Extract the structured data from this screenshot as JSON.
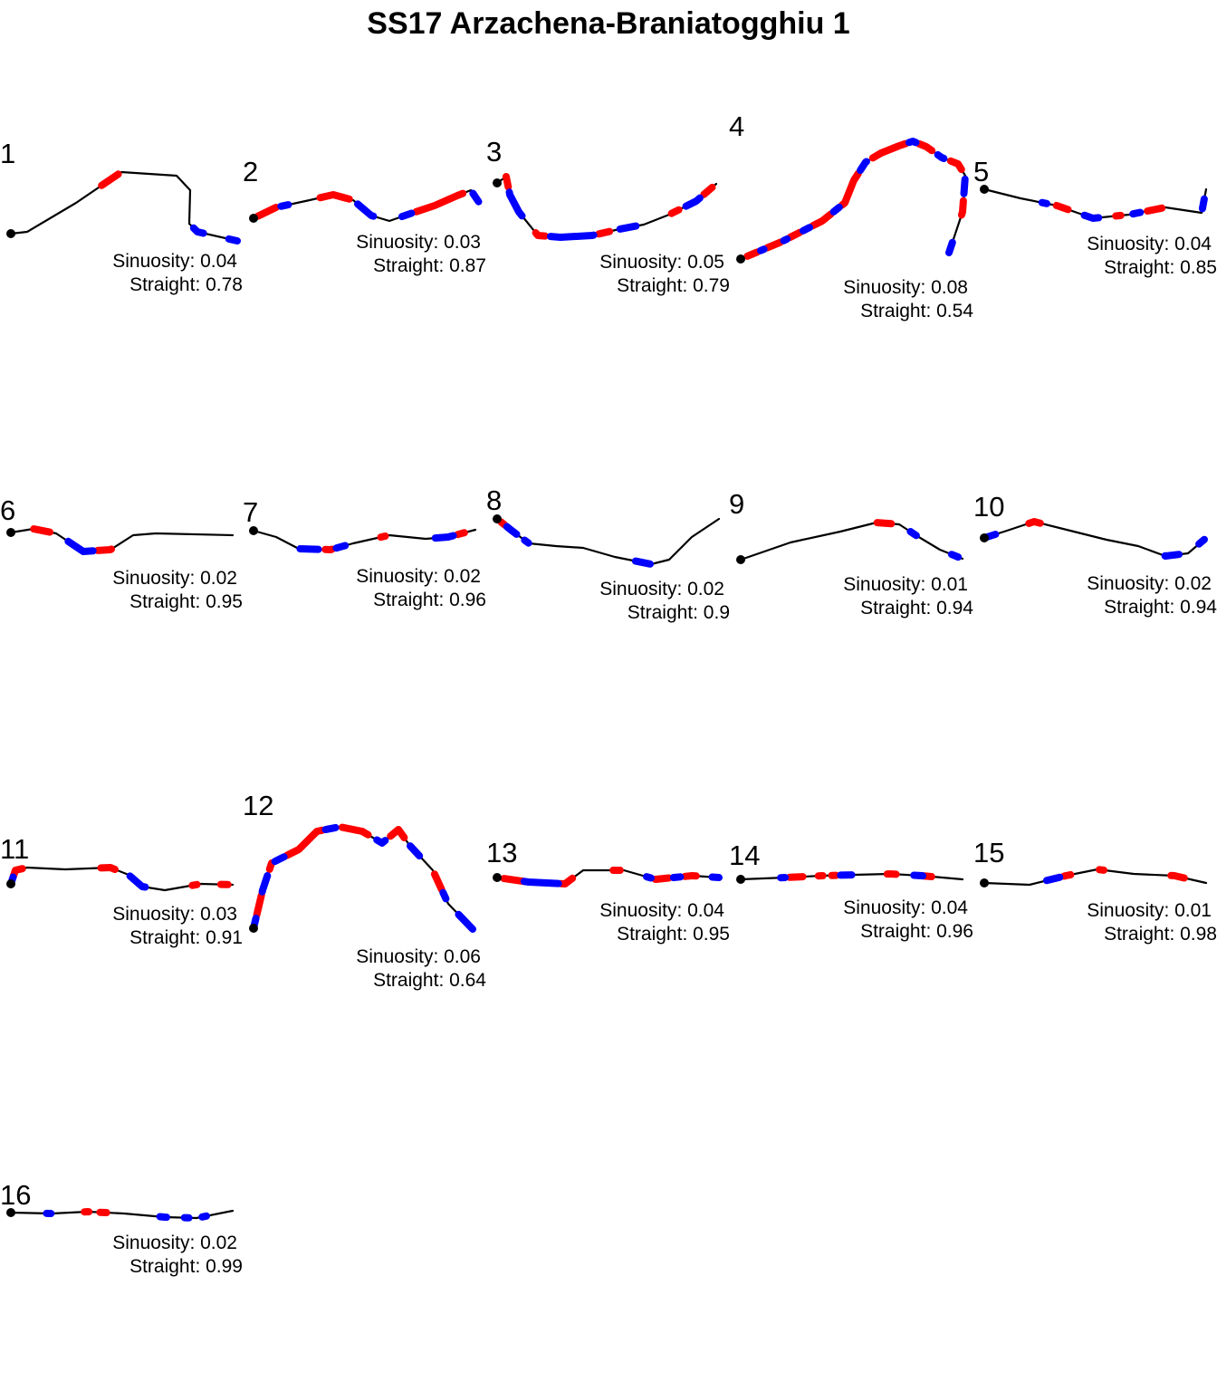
{
  "title": "SS17 Arzachena-Braniatogghiu 1",
  "chart_data": {
    "type": "line",
    "title": "SS17 Arzachena-Braniatogghiu 1",
    "legend": "none",
    "grid": false,
    "colors": {
      "track": "#000000",
      "start": "#000000",
      "red_marker": "#ff0000",
      "blue_marker": "#0000ff"
    },
    "panels": [
      {
        "id": "1",
        "sinuosity": "0.04",
        "straight": "0.78",
        "path": [
          [
            0,
            76
          ],
          [
            18,
            74
          ],
          [
            72,
            42
          ],
          [
            122,
            8
          ],
          [
            183,
            12
          ],
          [
            198,
            28
          ],
          [
            197,
            65
          ],
          [
            206,
            74
          ],
          [
            250,
            84
          ]
        ],
        "red": [
          [
            0.36,
            0.43
          ]
        ],
        "blue": [
          [
            0.84,
            0.88
          ],
          [
            0.97,
            1.0
          ]
        ]
      },
      {
        "id": "2",
        "sinuosity": "0.03",
        "straight": "0.87",
        "path": [
          [
            0,
            58
          ],
          [
            25,
            46
          ],
          [
            62,
            38
          ],
          [
            88,
            32
          ],
          [
            110,
            38
          ],
          [
            130,
            55
          ],
          [
            150,
            61
          ],
          [
            170,
            54
          ],
          [
            200,
            44
          ],
          [
            225,
            33
          ],
          [
            240,
            27
          ],
          [
            250,
            42
          ]
        ],
        "red": [
          [
            0.02,
            0.1
          ],
          [
            0.28,
            0.4
          ],
          [
            0.7,
            0.9
          ]
        ],
        "blue": [
          [
            0.12,
            0.15
          ],
          [
            0.44,
            0.52
          ],
          [
            0.64,
            0.68
          ],
          [
            0.95,
            0.99
          ]
        ]
      },
      {
        "id": "3",
        "sinuosity": "0.05",
        "straight": "0.79",
        "path": [
          [
            0,
            35
          ],
          [
            10,
            28
          ],
          [
            14,
            48
          ],
          [
            24,
            67
          ],
          [
            45,
            93
          ],
          [
            70,
            95
          ],
          [
            105,
            93
          ],
          [
            135,
            86
          ],
          [
            162,
            81
          ],
          [
            190,
            70
          ],
          [
            220,
            55
          ],
          [
            242,
            36
          ]
        ],
        "red": [
          [
            0.04,
            0.08
          ],
          [
            0.28,
            0.32
          ],
          [
            0.52,
            0.56
          ],
          [
            0.8,
            0.83
          ],
          [
            0.94,
            0.98
          ]
        ],
        "blue": [
          [
            0.1,
            0.2
          ],
          [
            0.34,
            0.5
          ],
          [
            0.6,
            0.66
          ],
          [
            0.86,
            0.92
          ]
        ]
      },
      {
        "id": "4",
        "sinuosity": "0.08",
        "straight": "0.54",
        "path": [
          [
            0,
            152
          ],
          [
            45,
            133
          ],
          [
            90,
            110
          ],
          [
            115,
            90
          ],
          [
            125,
            65
          ],
          [
            138,
            45
          ],
          [
            155,
            35
          ],
          [
            175,
            27
          ],
          [
            190,
            22
          ],
          [
            205,
            28
          ],
          [
            222,
            40
          ],
          [
            240,
            47
          ],
          [
            248,
            60
          ],
          [
            245,
            100
          ],
          [
            230,
            145
          ]
        ],
        "red": [
          [
            0.02,
            0.05
          ],
          [
            0.08,
            0.12
          ],
          [
            0.15,
            0.18
          ],
          [
            0.22,
            0.28
          ],
          [
            0.32,
            0.42
          ],
          [
            0.48,
            0.58
          ],
          [
            0.62,
            0.66
          ],
          [
            0.72,
            0.76
          ],
          [
            0.85,
            0.89
          ]
        ],
        "blue": [
          [
            0.06,
            0.07
          ],
          [
            0.13,
            0.14
          ],
          [
            0.19,
            0.21
          ],
          [
            0.29,
            0.31
          ],
          [
            0.43,
            0.46
          ],
          [
            0.59,
            0.61
          ],
          [
            0.68,
            0.7
          ],
          [
            0.79,
            0.83
          ],
          [
            0.97,
            1.0
          ]
        ]
      },
      {
        "id": "5",
        "sinuosity": "0.04",
        "straight": "0.85",
        "path": [
          [
            0,
            0
          ],
          [
            40,
            10
          ],
          [
            80,
            18
          ],
          [
            120,
            32
          ],
          [
            160,
            28
          ],
          [
            200,
            20
          ],
          [
            240,
            26
          ],
          [
            245,
            0
          ]
        ],
        "red": [
          [
            0.3,
            0.35
          ],
          [
            0.55,
            0.57
          ],
          [
            0.68,
            0.74
          ]
        ],
        "blue": [
          [
            0.24,
            0.26
          ],
          [
            0.42,
            0.48
          ],
          [
            0.62,
            0.65
          ],
          [
            0.92,
            0.96
          ]
        ]
      },
      {
        "id": "6",
        "sinuosity": "0.02",
        "straight": "0.95",
        "path": [
          [
            0,
            37
          ],
          [
            25,
            33
          ],
          [
            50,
            38
          ],
          [
            80,
            58
          ],
          [
            110,
            56
          ],
          [
            135,
            40
          ],
          [
            160,
            38
          ],
          [
            245,
            40
          ]
        ],
        "red": [
          [
            0.1,
            0.17
          ],
          [
            0.4,
            0.46
          ]
        ],
        "blue": [
          [
            0.26,
            0.38
          ]
        ]
      },
      {
        "id": "7",
        "sinuosity": "0.02",
        "straight": "0.96",
        "path": [
          [
            0,
            23
          ],
          [
            25,
            30
          ],
          [
            50,
            43
          ],
          [
            85,
            44
          ],
          [
            110,
            37
          ],
          [
            150,
            28
          ],
          [
            190,
            32
          ],
          [
            215,
            30
          ],
          [
            245,
            22
          ]
        ],
        "red": [
          [
            0.33,
            0.36
          ],
          [
            0.58,
            0.6
          ],
          [
            0.92,
            0.95
          ]
        ],
        "blue": [
          [
            0.22,
            0.3
          ],
          [
            0.38,
            0.42
          ],
          [
            0.82,
            0.9
          ]
        ]
      },
      {
        "id": "8",
        "sinuosity": "0.02",
        "straight": "0.9",
        "path": [
          [
            0,
            10
          ],
          [
            15,
            22
          ],
          [
            35,
            37
          ],
          [
            65,
            40
          ],
          [
            95,
            42
          ],
          [
            130,
            52
          ],
          [
            170,
            60
          ],
          [
            190,
            55
          ],
          [
            215,
            30
          ],
          [
            245,
            10
          ]
        ],
        "red": [
          [
            0.02,
            0.04
          ]
        ],
        "blue": [
          [
            0.05,
            0.1
          ],
          [
            0.14,
            0.16
          ],
          [
            0.6,
            0.66
          ]
        ]
      },
      {
        "id": "9",
        "sinuosity": "0.01",
        "straight": "0.94",
        "path": [
          [
            0,
            61
          ],
          [
            55,
            42
          ],
          [
            110,
            30
          ],
          [
            150,
            20
          ],
          [
            175,
            22
          ],
          [
            195,
            35
          ],
          [
            220,
            50
          ],
          [
            245,
            60
          ]
        ],
        "red": [
          [
            0.6,
            0.66
          ]
        ],
        "blue": [
          [
            0.75,
            0.78
          ],
          [
            0.95,
            0.98
          ]
        ]
      },
      {
        "id": "10",
        "sinuosity": "0.02",
        "straight": "0.94",
        "path": [
          [
            0,
            38
          ],
          [
            25,
            30
          ],
          [
            55,
            20
          ],
          [
            95,
            30
          ],
          [
            135,
            40
          ],
          [
            170,
            47
          ],
          [
            200,
            58
          ],
          [
            225,
            55
          ],
          [
            245,
            38
          ]
        ],
        "red": [
          [
            0.2,
            0.25
          ]
        ],
        "blue": [
          [
            0.0,
            0.05
          ],
          [
            0.8,
            0.86
          ],
          [
            0.96,
            0.99
          ]
        ]
      },
      {
        "id": "11",
        "sinuosity": "0.03",
        "straight": "0.91",
        "path": [
          [
            0,
            50
          ],
          [
            5,
            35
          ],
          [
            18,
            32
          ],
          [
            60,
            34
          ],
          [
            110,
            32
          ],
          [
            130,
            40
          ],
          [
            145,
            53
          ],
          [
            170,
            57
          ],
          [
            210,
            50
          ],
          [
            245,
            51
          ]
        ],
        "red": [
          [
            0.03,
            0.09
          ],
          [
            0.42,
            0.48
          ],
          [
            0.83,
            0.85
          ],
          [
            0.95,
            0.98
          ]
        ],
        "blue": [
          [
            0.0,
            0.03
          ],
          [
            0.55,
            0.63
          ]
        ]
      },
      {
        "id": "12",
        "sinuosity": "0.06",
        "straight": "0.64",
        "path": [
          [
            0,
            142
          ],
          [
            10,
            100
          ],
          [
            20,
            70
          ],
          [
            50,
            55
          ],
          [
            70,
            35
          ],
          [
            95,
            30
          ],
          [
            120,
            35
          ],
          [
            142,
            48
          ],
          [
            160,
            33
          ],
          [
            172,
            50
          ],
          [
            198,
            78
          ],
          [
            215,
            115
          ],
          [
            242,
            143
          ]
        ],
        "red": [
          [
            0.04,
            0.1
          ],
          [
            0.18,
            0.2
          ],
          [
            0.25,
            0.38
          ],
          [
            0.44,
            0.52
          ],
          [
            0.6,
            0.66
          ],
          [
            0.8,
            0.85
          ]
        ],
        "blue": [
          [
            0.0,
            0.03
          ],
          [
            0.11,
            0.16
          ],
          [
            0.21,
            0.24
          ],
          [
            0.39,
            0.42
          ],
          [
            0.55,
            0.58
          ],
          [
            0.69,
            0.73
          ],
          [
            0.86,
            0.88
          ],
          [
            0.94,
            1.0
          ]
        ]
      },
      {
        "id": "13",
        "sinuosity": "0.04",
        "straight": "0.95",
        "path": [
          [
            0,
            0
          ],
          [
            35,
            5
          ],
          [
            75,
            7
          ],
          [
            95,
            -8
          ],
          [
            140,
            -8
          ],
          [
            175,
            2
          ],
          [
            215,
            -2
          ],
          [
            245,
            0
          ]
        ],
        "red": [
          [
            0.03,
            0.12
          ],
          [
            0.28,
            0.34
          ],
          [
            0.53,
            0.56
          ],
          [
            0.72,
            0.78
          ],
          [
            0.85,
            0.9
          ]
        ],
        "blue": [
          [
            0.12,
            0.27
          ],
          [
            0.68,
            0.7
          ],
          [
            0.8,
            0.83
          ],
          [
            0.97,
            1.0
          ]
        ]
      },
      {
        "id": "14",
        "sinuosity": "0.04",
        "straight": "0.96",
        "path": [
          [
            0,
            0
          ],
          [
            50,
            -2
          ],
          [
            90,
            -4
          ],
          [
            125,
            -5
          ],
          [
            165,
            -6
          ],
          [
            200,
            -4
          ],
          [
            245,
            0
          ]
        ],
        "red": [
          [
            0.22,
            0.28
          ],
          [
            0.35,
            0.37
          ],
          [
            0.41,
            0.43
          ],
          [
            0.66,
            0.7
          ],
          [
            0.82,
            0.86
          ]
        ],
        "blue": [
          [
            0.18,
            0.2
          ],
          [
            0.45,
            0.5
          ],
          [
            0.78,
            0.82
          ]
        ]
      },
      {
        "id": "15",
        "sinuosity": "0.01",
        "straight": "0.98",
        "path": [
          [
            0,
            0
          ],
          [
            50,
            2
          ],
          [
            90,
            -8
          ],
          [
            125,
            -15
          ],
          [
            165,
            -10
          ],
          [
            210,
            -8
          ],
          [
            245,
            0
          ]
        ],
        "red": [
          [
            0.36,
            0.39
          ],
          [
            0.52,
            0.54
          ],
          [
            0.84,
            0.9
          ]
        ],
        "blue": [
          [
            0.28,
            0.34
          ]
        ]
      },
      {
        "id": "16",
        "sinuosity": "0.02",
        "straight": "0.99",
        "path": [
          [
            0,
            0
          ],
          [
            45,
            1
          ],
          [
            85,
            -1
          ],
          [
            125,
            1
          ],
          [
            170,
            5
          ],
          [
            205,
            6
          ],
          [
            245,
            -2
          ]
        ],
        "red": [
          [
            0.33,
            0.35
          ],
          [
            0.4,
            0.43
          ]
        ],
        "blue": [
          [
            0.16,
            0.18
          ],
          [
            0.67,
            0.7
          ],
          [
            0.78,
            0.8
          ],
          [
            0.86,
            0.88
          ]
        ]
      }
    ]
  }
}
